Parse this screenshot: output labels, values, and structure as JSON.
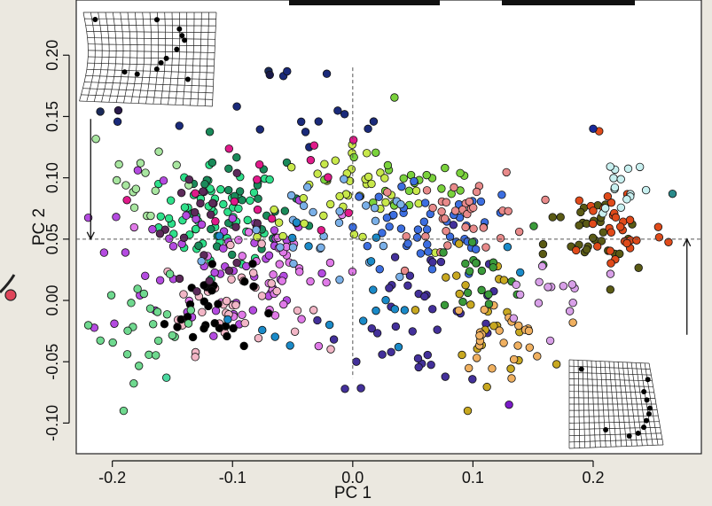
{
  "chart_data": {
    "type": "scatter",
    "xlabel": "PC 1",
    "ylabel": "PC 2",
    "xlim": [
      -0.23,
      0.29
    ],
    "ylim": [
      -0.125,
      0.245
    ],
    "x_ticks": [
      -0.2,
      -0.1,
      0.0,
      0.1,
      0.2
    ],
    "y_ticks": [
      -0.1,
      -0.05,
      0.0,
      0.05,
      0.1,
      0.15,
      0.2
    ],
    "x_tick_labels": [
      "-0.2",
      "-0.1",
      "0.0",
      "0.1",
      "0.2"
    ],
    "y_tick_labels": [
      "-0.10",
      "-0.05",
      "0.00",
      "0.05",
      "0.10",
      "0.15",
      "0.20"
    ],
    "reference_lines": {
      "x": 0.0,
      "y": 0.05,
      "style": "dashed"
    },
    "arrows": [
      {
        "x": -0.218,
        "from_y": 0.148,
        "to_y": 0.05
      },
      {
        "x": 0.278,
        "from_y": -0.028,
        "to_y": 0.05
      }
    ],
    "insets": [
      {
        "name": "deformation-grid-positive-pc2",
        "position": "top-left"
      },
      {
        "name": "deformation-grid-negative-pc2",
        "position": "bottom-right"
      }
    ],
    "grid": false,
    "legend": "none",
    "n_points_approx": 800,
    "clusters": [
      {
        "color": "#2ee08a",
        "cx": -0.11,
        "cy": 0.07,
        "sx": 0.025,
        "sy": 0.02,
        "n": 55
      },
      {
        "color": "#1a8a5a",
        "cx": -0.1,
        "cy": 0.075,
        "sx": 0.03,
        "sy": 0.025,
        "n": 30
      },
      {
        "color": "#b44be0",
        "cx": -0.12,
        "cy": 0.03,
        "sx": 0.05,
        "sy": 0.035,
        "n": 60
      },
      {
        "color": "#e07ae8",
        "cx": -0.06,
        "cy": 0.025,
        "sx": 0.035,
        "sy": 0.03,
        "n": 35
      },
      {
        "color": "#f2b6c6",
        "cx": -0.1,
        "cy": 0.0,
        "sx": 0.03,
        "sy": 0.02,
        "n": 35
      },
      {
        "color": "#000000",
        "cx": -0.12,
        "cy": -0.005,
        "sx": 0.018,
        "sy": 0.02,
        "n": 28
      },
      {
        "color": "#6fd98f",
        "cx": -0.17,
        "cy": -0.025,
        "sx": 0.02,
        "sy": 0.02,
        "n": 25
      },
      {
        "color": "#a8e6a0",
        "cx": -0.17,
        "cy": 0.1,
        "sx": 0.025,
        "sy": 0.025,
        "n": 15
      },
      {
        "color": "#5c2a5a",
        "cx": -0.12,
        "cy": 0.06,
        "sx": 0.025,
        "sy": 0.02,
        "n": 20
      },
      {
        "color": "#c8e84a",
        "cx": -0.01,
        "cy": 0.085,
        "sx": 0.035,
        "sy": 0.018,
        "n": 40
      },
      {
        "color": "#7ad23c",
        "cx": 0.05,
        "cy": 0.1,
        "sx": 0.035,
        "sy": 0.02,
        "n": 25
      },
      {
        "color": "#3c6ee0",
        "cx": 0.06,
        "cy": 0.055,
        "sx": 0.04,
        "sy": 0.02,
        "n": 45
      },
      {
        "color": "#7ab0e8",
        "cx": -0.02,
        "cy": 0.05,
        "sx": 0.04,
        "sy": 0.02,
        "n": 25
      },
      {
        "color": "#e88a8a",
        "cx": 0.1,
        "cy": 0.07,
        "sx": 0.025,
        "sy": 0.018,
        "n": 35
      },
      {
        "color": "#43309a",
        "cx": 0.06,
        "cy": -0.01,
        "sx": 0.04,
        "sy": 0.03,
        "n": 40
      },
      {
        "color": "#c8a820",
        "cx": 0.11,
        "cy": -0.01,
        "sx": 0.025,
        "sy": 0.025,
        "n": 25
      },
      {
        "color": "#f0b060",
        "cx": 0.12,
        "cy": -0.03,
        "sx": 0.02,
        "sy": 0.015,
        "n": 25
      },
      {
        "color": "#3a9a3a",
        "cx": 0.1,
        "cy": 0.02,
        "sx": 0.025,
        "sy": 0.02,
        "n": 20
      },
      {
        "color": "#5a5a14",
        "cx": 0.2,
        "cy": 0.045,
        "sx": 0.02,
        "sy": 0.02,
        "n": 30
      },
      {
        "color": "#e04a1a",
        "cx": 0.22,
        "cy": 0.06,
        "sx": 0.02,
        "sy": 0.02,
        "n": 30
      },
      {
        "color": "#c8f0f0",
        "cx": 0.225,
        "cy": 0.095,
        "sx": 0.012,
        "sy": 0.015,
        "n": 15
      },
      {
        "color": "#d8a0e8",
        "cx": 0.17,
        "cy": 0.01,
        "sx": 0.03,
        "sy": 0.015,
        "n": 15
      },
      {
        "color": "#1a2a7a",
        "cx": -0.05,
        "cy": 0.14,
        "sx": 0.05,
        "sy": 0.025,
        "n": 15
      },
      {
        "color": "#e01a8a",
        "cx": -0.08,
        "cy": 0.1,
        "sx": 0.05,
        "sy": 0.03,
        "n": 15
      },
      {
        "color": "#1a8ac8",
        "cx": 0.02,
        "cy": 0.02,
        "sx": 0.05,
        "sy": 0.03,
        "n": 20
      }
    ],
    "outliers": [
      {
        "x": -0.21,
        "y": 0.154,
        "color": "#1a2a5a"
      },
      {
        "x": -0.195,
        "y": 0.155,
        "color": "#2a1a4a"
      },
      {
        "x": -0.07,
        "y": 0.187,
        "color": "#1a2a5a"
      },
      {
        "x": -0.069,
        "y": 0.184,
        "color": "#1a1a4a"
      },
      {
        "x": 0.266,
        "y": 0.087,
        "color": "#2a8a8a"
      },
      {
        "x": 0.205,
        "y": 0.138,
        "color": "#e04a1a"
      },
      {
        "x": 0.2,
        "y": 0.14,
        "color": "#1a2a9a"
      },
      {
        "x": 0.13,
        "y": -0.085,
        "color": "#7a1ac8"
      },
      {
        "x": -0.155,
        "y": -0.063,
        "color": "#4ad8a0"
      }
    ]
  }
}
